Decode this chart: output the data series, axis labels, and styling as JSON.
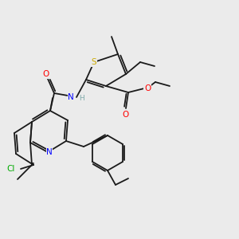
{
  "bg_color": "#ebebeb",
  "atoms": {
    "S": {
      "color": "#ccaa00"
    },
    "N": {
      "color": "#0000ff"
    },
    "O": {
      "color": "#ff0000"
    },
    "Cl": {
      "color": "#00aa00"
    },
    "H": {
      "color": "#7faaaa"
    },
    "C": {
      "color": "#1a1a1a"
    }
  },
  "figsize": [
    3.0,
    3.0
  ],
  "dpi": 100
}
